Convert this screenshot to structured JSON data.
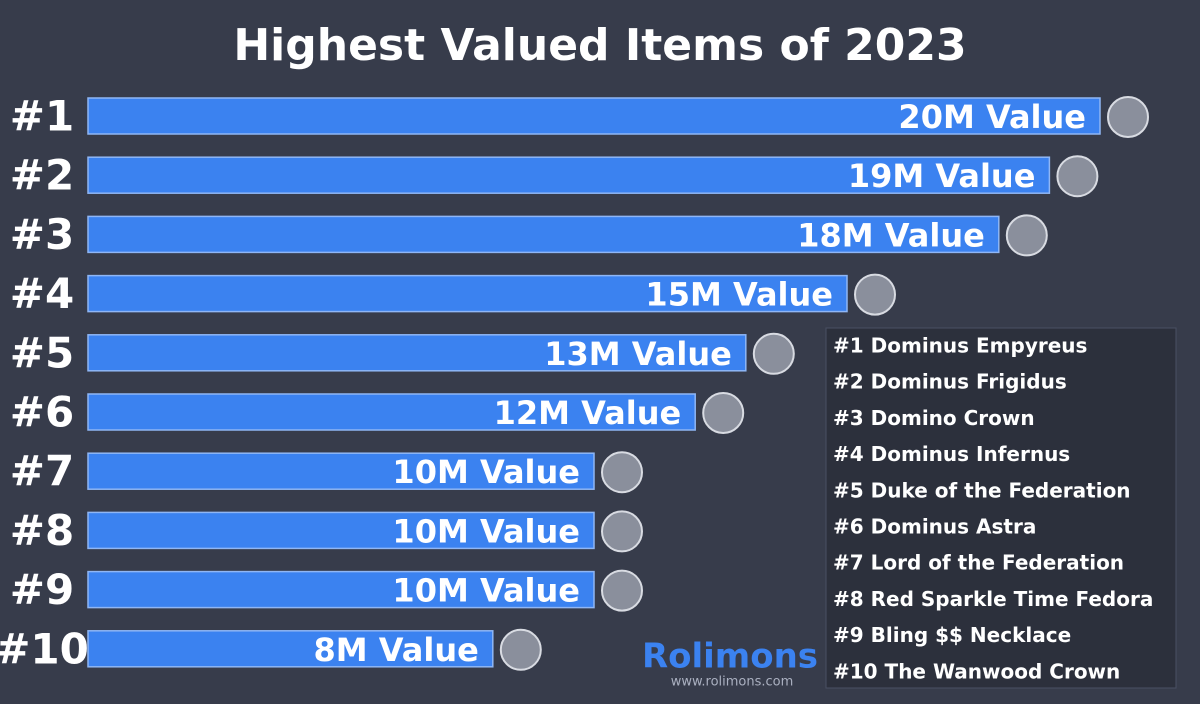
{
  "chart_data": {
    "type": "bar",
    "orientation": "horizontal",
    "title": "Highest Valued Items of 2023",
    "categories": [
      "#1",
      "#2",
      "#3",
      "#4",
      "#5",
      "#6",
      "#7",
      "#8",
      "#9",
      "#10"
    ],
    "values": [
      20000000,
      19000000,
      18000000,
      15000000,
      13000000,
      12000000,
      10000000,
      10000000,
      10000000,
      8000000
    ],
    "value_labels": [
      "20M Value",
      "19M Value",
      "18M Value",
      "15M Value",
      "13M Value",
      "12M Value",
      "10M Value",
      "10M Value",
      "10M Value",
      "8M Value"
    ],
    "color": "#3b82f0",
    "items": [
      "#1 Dominus Empyreus",
      "#2 Dominus Frigidus",
      "#3 Domino Crown",
      "#4 Dominus Infernus",
      "#5 Duke of the Federation",
      "#6 Dominus Astra",
      "#7 Lord of the Federation",
      "#8 Red Sparkle Time Fedora",
      "#9 Bling $$ Necklace",
      "#10 The Wanwood Crown"
    ],
    "brand": "Rolimons",
    "website": "www.rolimons.com"
  }
}
